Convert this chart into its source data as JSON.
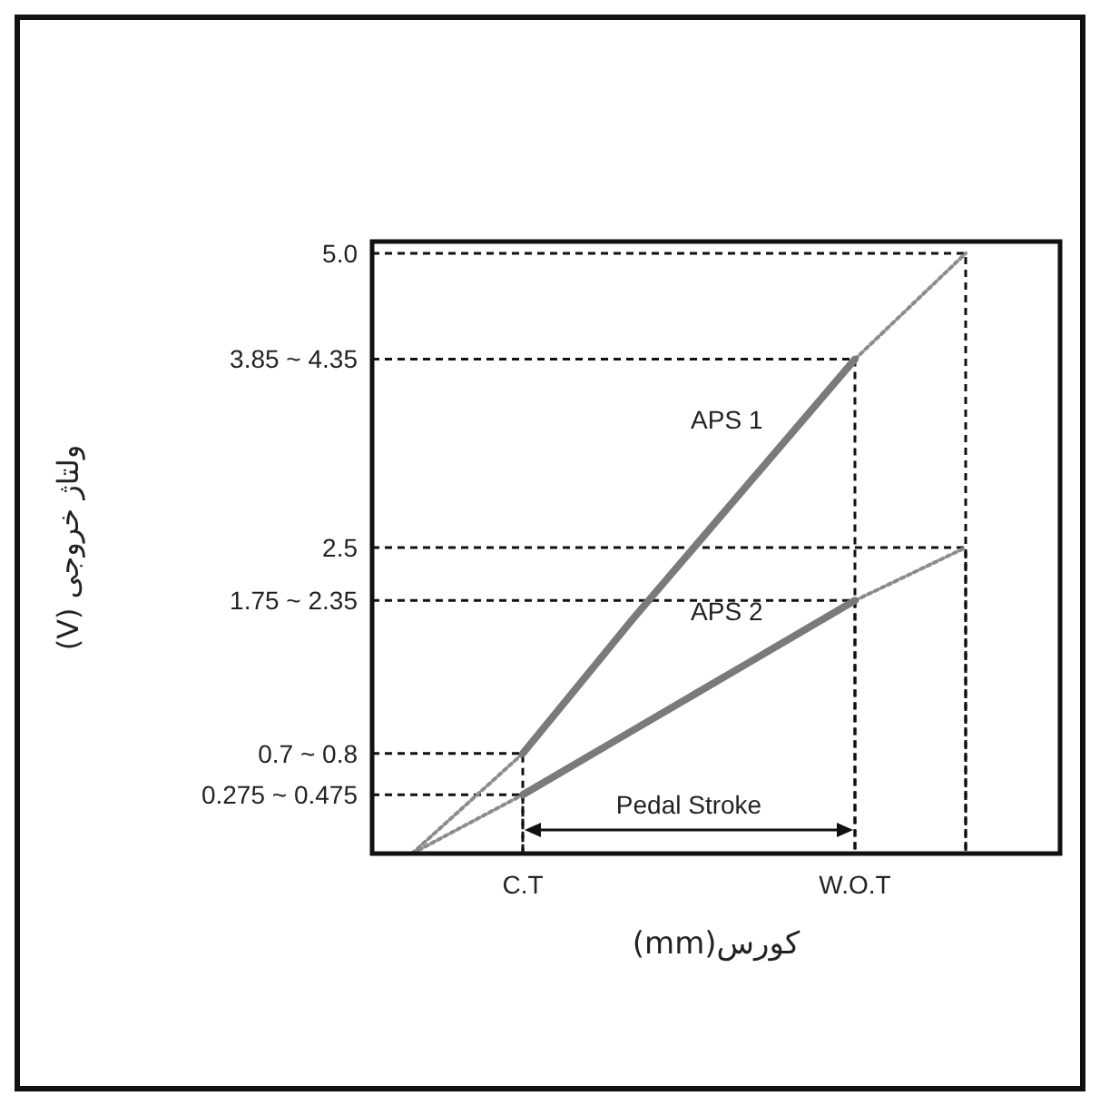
{
  "chart_data": {
    "type": "line",
    "xlabel": "کورس(mm)",
    "ylabel": "ولتاژ خروجی (V)",
    "categories": [
      null,
      "C.T",
      null,
      null,
      "W.O.T",
      null
    ],
    "ylim": [
      -0.1,
      5.1
    ],
    "yticks": [
      {
        "value": 0.4,
        "label": "0.275 ~ 0.475"
      },
      {
        "value": 0.75,
        "label": "0.7 ~ 0.8"
      },
      {
        "value": 2.05,
        "label": "1.75 ~ 2.35"
      },
      2.5,
      {
        "value": 4.1,
        "label": "3.85 ~ 4.35"
      },
      {
        "value": 5.0,
        "label": "5.0"
      }
    ],
    "series": [
      {
        "color": "#8c8c8c",
        "line_style": "dotted",
        "values": [
          -0.1,
          0.75,
          null,
          null,
          4.1,
          5.0
        ]
      },
      {
        "color": "#8c8c8c",
        "line_style": "dotted",
        "values": [
          -0.1,
          0.4,
          null,
          null,
          2.05,
          2.5
        ]
      },
      {
        "name": "APS 1",
        "color": "#7a7a7a",
        "line_style": "solid",
        "values": [
          null,
          0.75,
          1.9,
          3.0,
          4.1,
          null
        ]
      },
      {
        "name": "APS 2",
        "color": "#7a7a7a",
        "line_style": "solid",
        "values": [
          null,
          0.4,
          0.95,
          1.5,
          2.05,
          null
        ]
      }
    ],
    "ref_lines": [
      {
        "axis": "y",
        "value": 5.0
      },
      {
        "axis": "y",
        "value": 4.1
      },
      {
        "axis": "y",
        "value": 2.5
      },
      {
        "axis": "y",
        "value": 2.05
      },
      {
        "axis": "y",
        "value": 0.75
      },
      {
        "axis": "y",
        "value": 0.4
      }
    ],
    "annotations": [
      "Pedal Stroke"
    ],
    "grid": false,
    "marker": "none"
  }
}
